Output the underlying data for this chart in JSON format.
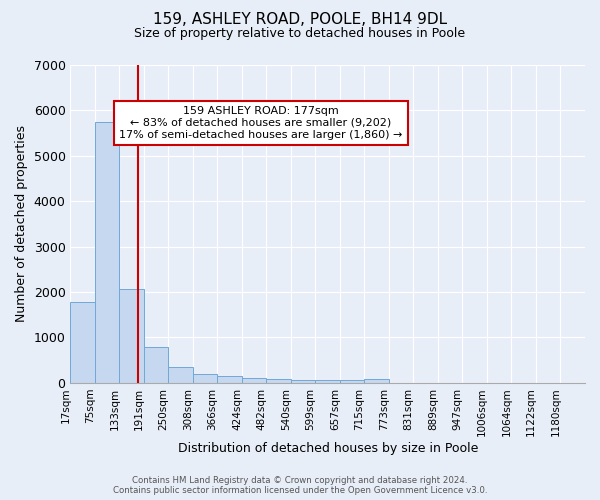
{
  "title1": "159, ASHLEY ROAD, POOLE, BH14 9DL",
  "title2": "Size of property relative to detached houses in Poole",
  "xlabel": "Distribution of detached houses by size in Poole",
  "ylabel": "Number of detached properties",
  "bin_labels": [
    "17sqm",
    "75sqm",
    "133sqm",
    "191sqm",
    "250sqm",
    "308sqm",
    "366sqm",
    "424sqm",
    "482sqm",
    "540sqm",
    "599sqm",
    "657sqm",
    "715sqm",
    "773sqm",
    "831sqm",
    "889sqm",
    "947sqm",
    "1006sqm",
    "1064sqm",
    "1122sqm",
    "1180sqm"
  ],
  "bar_values": [
    1780,
    5750,
    2060,
    800,
    340,
    200,
    160,
    110,
    90,
    60,
    60,
    60,
    95,
    0,
    0,
    0,
    0,
    0,
    0,
    0,
    0
  ],
  "bar_color": "#c5d8f0",
  "bar_edgecolor": "#6fa8d6",
  "annotation_text": "159 ASHLEY ROAD: 177sqm\n← 83% of detached houses are smaller (9,202)\n17% of semi-detached houses are larger (1,860) →",
  "annot_box_color": "#ffffff",
  "annot_box_edgecolor": "#cc0000",
  "background_color": "#e8eef8",
  "ylim": [
    0,
    7000
  ],
  "yticks": [
    0,
    1000,
    2000,
    3000,
    4000,
    5000,
    6000,
    7000
  ],
  "footer1": "Contains HM Land Registry data © Crown copyright and database right 2024.",
  "footer2": "Contains public sector information licensed under the Open Government Licence v3.0."
}
